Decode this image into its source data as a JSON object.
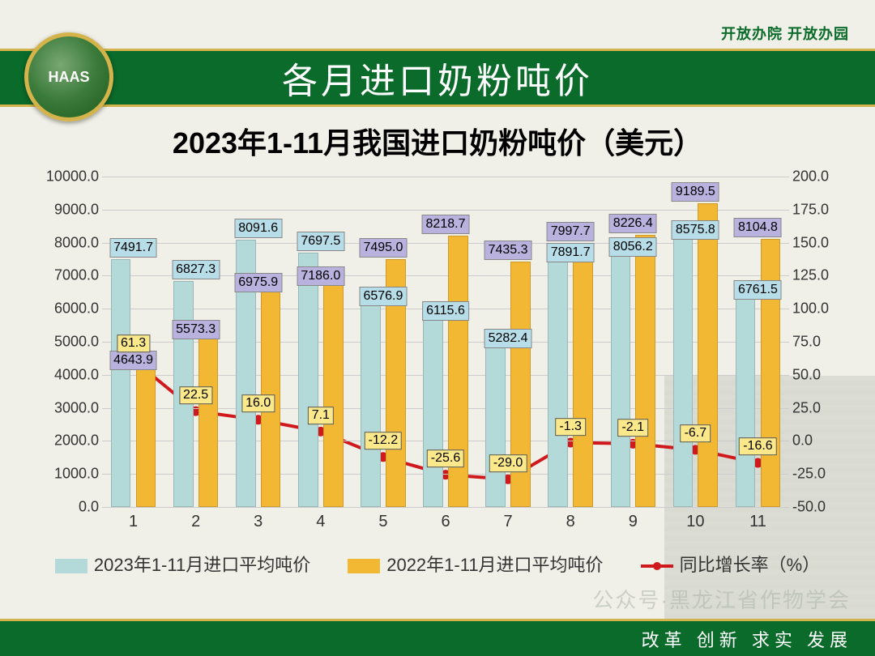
{
  "topRight": "开放办院 开放办园",
  "logoText": "HAAS",
  "headerTitle": "各月进口奶粉吨价",
  "subtitle": "2023年1-11月我国进口奶粉吨价（美元）",
  "footer": "改革 创新 求实 发展",
  "watermark": "公众号·黑龙江省作物学会",
  "legend": {
    "s2023": "2023年1-11月进口平均吨价",
    "s2022": "2022年1-11月进口平均吨价",
    "growth": "同比增长率（%）"
  },
  "colors": {
    "bar2023": "#b3d9d9",
    "bar2022": "#f2b733",
    "label2023bg": "#b7dde9",
    "label2022bg": "#b9b2de",
    "lineColor": "#d0191c",
    "lineLabelBg": "#fbe88a",
    "headerGreen": "#0a6b2a",
    "gold": "#d4b34a"
  },
  "chart": {
    "ylimLeft": [
      0,
      10000
    ],
    "ytickStepLeft": 1000,
    "ylimRight": [
      -50,
      200
    ],
    "ytickStepRight": 25,
    "months": [
      "1",
      "2",
      "3",
      "4",
      "5",
      "6",
      "7",
      "8",
      "9",
      "10",
      "11"
    ],
    "series2023": [
      7491.7,
      6827.3,
      8091.6,
      7697.5,
      6576.9,
      6115.6,
      5282.4,
      7891.7,
      8056.2,
      8575.8,
      6761.5
    ],
    "series2022": [
      4643.9,
      5573.3,
      6975.9,
      7186.0,
      7495.0,
      8218.7,
      7435.3,
      7997.7,
      8226.4,
      9189.5,
      8104.8
    ],
    "growth": [
      61.3,
      22.5,
      16.0,
      7.1,
      -12.2,
      -25.6,
      -29.0,
      -1.3,
      -2.1,
      -6.7,
      -16.6
    ],
    "barWidth": 0.32,
    "groupGap": 0.08
  }
}
